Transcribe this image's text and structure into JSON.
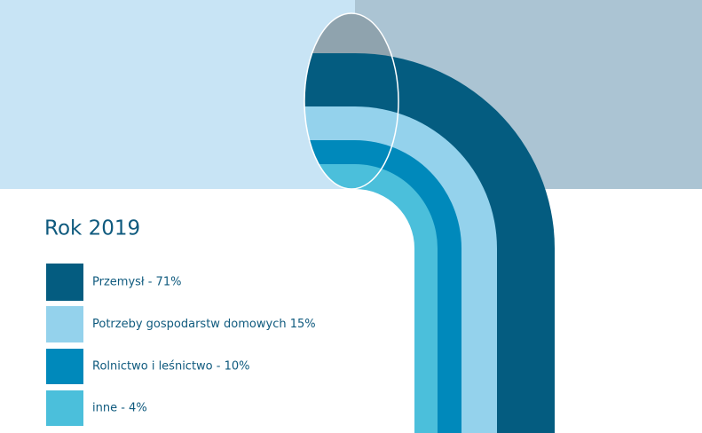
{
  "title": "Rok 2019",
  "legend": [
    {
      "label": "Przemysł - 71%",
      "color": "#045c80"
    },
    {
      "label": "Potrzeby gospodarstw domowych 15%",
      "color": "#94d2ec"
    },
    {
      "label": "Rolnictwo i leśnictwo - 10%",
      "color": "#0089bb"
    },
    {
      "label": "inne - 4%",
      "color": "#4bbfdb"
    }
  ]
}
